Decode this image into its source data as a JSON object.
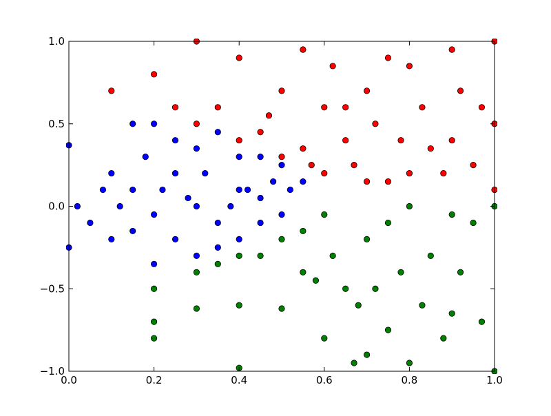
{
  "chart_data": {
    "type": "scatter",
    "xlim": [
      0,
      1
    ],
    "ylim": [
      -1,
      1
    ],
    "xticks": [
      {
        "value": 0,
        "label": "0.0"
      },
      {
        "value": 0.2,
        "label": "0.2"
      },
      {
        "value": 0.4,
        "label": "0.4"
      },
      {
        "value": 0.6,
        "label": "0.6"
      },
      {
        "value": 0.8,
        "label": "0.8"
      },
      {
        "value": 1,
        "label": "1.0"
      }
    ],
    "yticks": [
      {
        "value": -1,
        "label": "−1.0"
      },
      {
        "value": -0.5,
        "label": "−0.5"
      },
      {
        "value": 0,
        "label": "0.0"
      },
      {
        "value": 0.5,
        "label": "0.5"
      },
      {
        "value": 1,
        "label": "1.0"
      }
    ],
    "grid": false,
    "series": [
      {
        "color": "#ff0000",
        "x": [
          0.1,
          0.2,
          0.25,
          0.3,
          0.3,
          0.35,
          0.4,
          0.4,
          0.45,
          0.5,
          0.5,
          0.55,
          0.55,
          0.6,
          0.6,
          0.62,
          0.65,
          0.67,
          0.7,
          0.7,
          0.72,
          0.75,
          0.75,
          0.78,
          0.8,
          0.8,
          0.83,
          0.85,
          0.88,
          0.9,
          0.9,
          0.92,
          0.95,
          0.97,
          1.0,
          1.0,
          1.0,
          0.47,
          0.57,
          0.65
        ],
        "values": [
          0.7,
          0.8,
          0.6,
          1.0,
          0.5,
          0.6,
          0.9,
          0.4,
          0.45,
          0.7,
          0.3,
          0.95,
          0.35,
          0.6,
          0.2,
          0.85,
          0.4,
          0.25,
          0.7,
          0.15,
          0.5,
          0.9,
          0.15,
          0.4,
          0.85,
          0.2,
          0.6,
          0.35,
          0.2,
          0.95,
          0.4,
          0.7,
          0.25,
          0.6,
          1.0,
          0.5,
          0.1,
          0.55,
          0.25,
          0.6
        ]
      },
      {
        "color": "#008000",
        "x": [
          0.2,
          0.2,
          0.2,
          0.3,
          0.3,
          0.35,
          0.4,
          0.4,
          0.45,
          0.5,
          0.5,
          0.55,
          0.55,
          0.6,
          0.6,
          0.62,
          0.65,
          0.67,
          0.7,
          0.7,
          0.72,
          0.75,
          0.75,
          0.78,
          0.8,
          0.8,
          0.83,
          0.85,
          0.88,
          0.9,
          0.9,
          0.92,
          0.95,
          0.97,
          1.0,
          1.0,
          0.4,
          0.58,
          0.68
        ],
        "values": [
          -0.5,
          -0.7,
          -0.8,
          -0.4,
          -0.62,
          -0.35,
          -0.98,
          -0.6,
          -0.3,
          -0.62,
          -0.2,
          -0.4,
          -0.15,
          -0.8,
          -0.05,
          -0.3,
          -0.5,
          -0.95,
          -0.2,
          -0.9,
          -0.5,
          -0.1,
          -0.75,
          -0.4,
          -0.95,
          0.0,
          -0.6,
          -0.3,
          -0.8,
          -0.05,
          -0.65,
          -0.4,
          -0.1,
          -0.7,
          -1.0,
          0.0,
          -0.3,
          -0.45,
          -0.6
        ]
      },
      {
        "color": "#0000ff",
        "x": [
          0.0,
          0.0,
          0.02,
          0.05,
          0.08,
          0.1,
          0.1,
          0.12,
          0.15,
          0.15,
          0.18,
          0.2,
          0.2,
          0.22,
          0.25,
          0.25,
          0.28,
          0.3,
          0.3,
          0.32,
          0.35,
          0.35,
          0.38,
          0.4,
          0.4,
          0.42,
          0.45,
          0.45,
          0.48,
          0.5,
          0.5,
          0.52,
          0.55,
          0.2,
          0.3,
          0.4,
          0.25,
          0.35,
          0.15,
          0.45
        ],
        "values": [
          0.37,
          -0.25,
          0.0,
          -0.1,
          0.1,
          -0.2,
          0.2,
          0.0,
          0.5,
          -0.15,
          0.3,
          0.5,
          -0.35,
          0.1,
          0.4,
          -0.2,
          0.05,
          0.35,
          -0.3,
          0.2,
          0.45,
          -0.25,
          0.0,
          0.3,
          -0.2,
          0.1,
          0.3,
          -0.1,
          0.15,
          0.25,
          -0.05,
          0.1,
          0.15,
          -0.05,
          0.0,
          0.1,
          0.2,
          -0.1,
          0.1,
          0.05
        ]
      }
    ]
  }
}
